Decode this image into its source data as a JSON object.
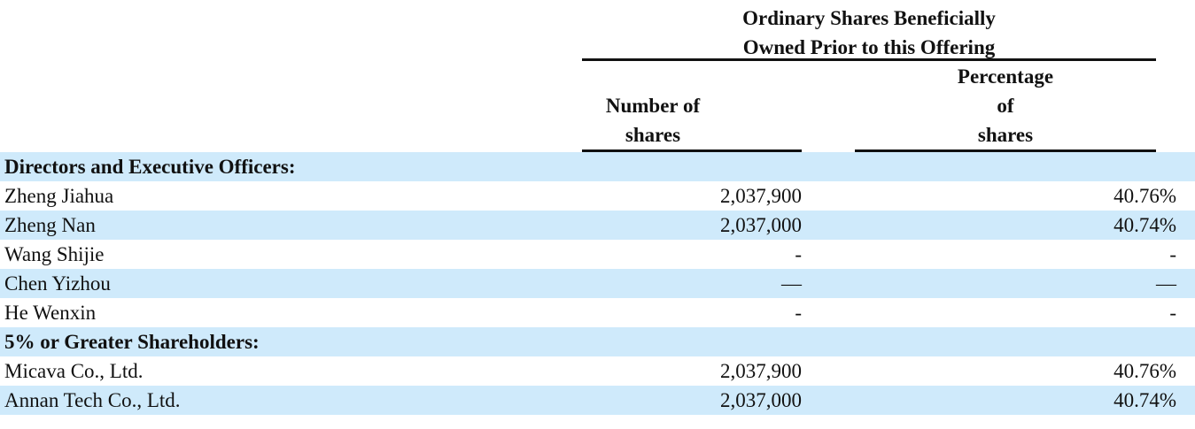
{
  "table": {
    "group_header": "Ordinary Shares Beneficially\nOwned Prior to this Offering",
    "col_shares": "Number of\nshares",
    "col_pct": "Percentage\nof\nshares",
    "rows": [
      {
        "type": "section",
        "label": "Directors and Executive Officers:",
        "shares": "",
        "pct": "",
        "shaded": true
      },
      {
        "type": "data",
        "label": "Zheng Jiahua",
        "shares": "2,037,900",
        "pct": "40.76%",
        "shaded": false
      },
      {
        "type": "data",
        "label": "Zheng Nan",
        "shares": "2,037,000",
        "pct": "40.74%",
        "shaded": true
      },
      {
        "type": "data",
        "label": "Wang Shijie",
        "shares": "-",
        "pct": "-",
        "shaded": false
      },
      {
        "type": "data",
        "label": "Chen Yizhou",
        "shares": "—",
        "pct": "—",
        "shaded": true
      },
      {
        "type": "data",
        "label": "He Wenxin",
        "shares": "-",
        "pct": "-",
        "shaded": false
      },
      {
        "type": "section",
        "label": "5% or Greater Shareholders:",
        "shares": "",
        "pct": "",
        "shaded": true
      },
      {
        "type": "data",
        "label": "Micava Co., Ltd.",
        "shares": "2,037,900",
        "pct": "40.76%",
        "shaded": false
      },
      {
        "type": "data",
        "label": "Annan Tech Co., Ltd.",
        "shares": "2,037,000",
        "pct": "40.74%",
        "shaded": true
      }
    ]
  },
  "colors": {
    "row_shade": "#cfeafb",
    "text": "#111111",
    "rule": "#111111"
  }
}
